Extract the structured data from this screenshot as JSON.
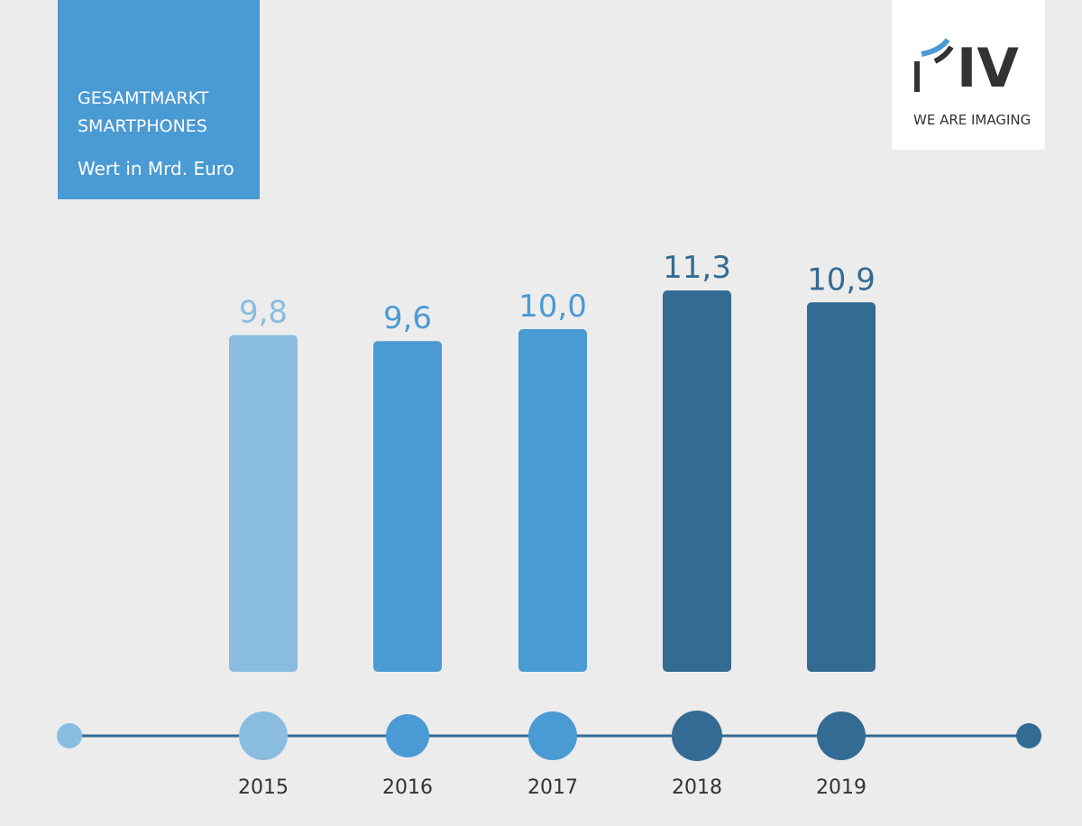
{
  "header": {
    "title_line1": "GESAMTMARKT",
    "title_line2": "SMARTPHONES",
    "subtitle": "Wert in Mrd. Euro"
  },
  "logo": {
    "text": "IV",
    "tagline": "WE ARE IMAGING"
  },
  "colors": {
    "background": "#ececec",
    "header_box": "#4a9ad4",
    "light_blue": "#8abcdf",
    "mid_blue": "#4a9ad4",
    "dark_blue": "#336b92",
    "timeline": "#336b92",
    "tick_text": "#333333"
  },
  "chart_data": {
    "type": "bar",
    "title": "GESAMTMARKT SMARTPHONES",
    "ylabel": "Wert in Mrd. Euro",
    "categories": [
      "2015",
      "2016",
      "2017",
      "2018",
      "2019"
    ],
    "values": [
      9.8,
      9.6,
      10.0,
      11.3,
      10.9
    ],
    "value_labels": [
      "9,8",
      "9,6",
      "10,0",
      "11,3",
      "10,9"
    ],
    "bar_colors": [
      "#8abcdf",
      "#4a9ad4",
      "#4a9ad4",
      "#336b92",
      "#336b92"
    ],
    "grid": false,
    "legend": "none"
  }
}
